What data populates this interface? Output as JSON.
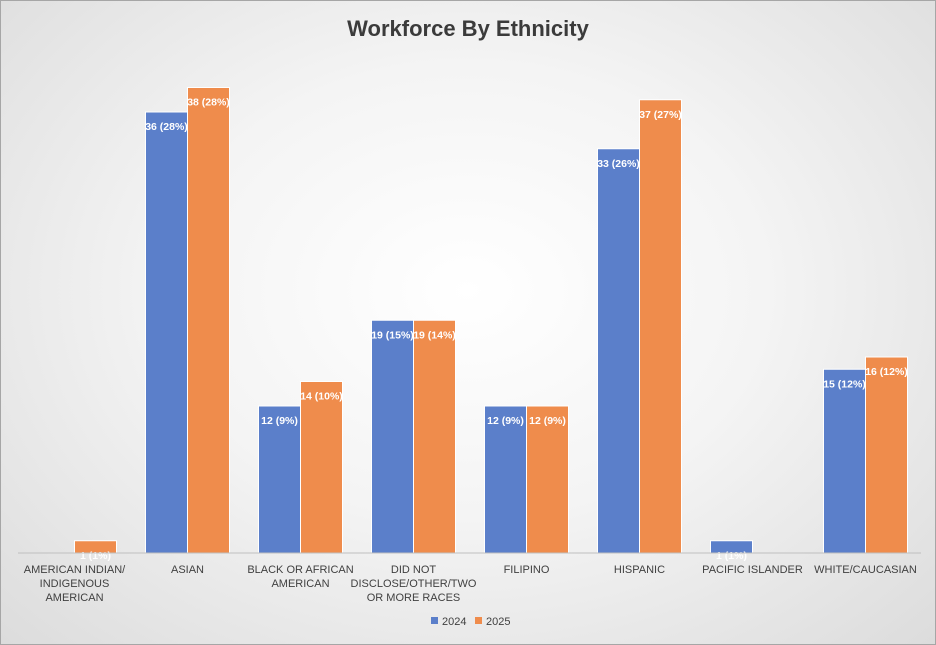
{
  "chart_data": {
    "type": "bar",
    "title": "Workforce By Ethnicity",
    "xlabel": "",
    "ylabel": "",
    "categories": [
      "AMERICAN INDIAN/ INDIGENOUS AMERICAN",
      "ASIAN",
      "BLACK OR AFRICAN AMERICAN",
      "DID NOT DISCLOSE/OTHER/TWO OR MORE RACES",
      "FILIPINO",
      "HISPANIC",
      "PACIFIC ISLANDER",
      "WHITE/CAUCASIAN"
    ],
    "category_lines": [
      [
        "AMERICAN INDIAN/",
        "INDIGENOUS",
        "AMERICAN"
      ],
      [
        "ASIAN"
      ],
      [
        "BLACK OR AFRICAN",
        "AMERICAN"
      ],
      [
        "DID NOT",
        "DISCLOSE/OTHER/TWO",
        "OR MORE RACES"
      ],
      [
        "FILIPINO"
      ],
      [
        "HISPANIC"
      ],
      [
        "PACIFIC ISLANDER"
      ],
      [
        "WHITE/CAUCASIAN"
      ]
    ],
    "series": [
      {
        "name": "2024",
        "color": "#5b7fca",
        "values": [
          0,
          36,
          12,
          19,
          12,
          33,
          1,
          15
        ],
        "labels": [
          "",
          "36 (28%)",
          "12 (9%)",
          "19 (15%)",
          "12 (9%)",
          "33 (26%)",
          "1 (1%)",
          "15 (12%)"
        ]
      },
      {
        "name": "2025",
        "color": "#ef8c4c",
        "values": [
          1,
          38,
          14,
          19,
          12,
          37,
          0,
          16
        ],
        "labels": [
          "1 (1%)",
          "38 (28%)",
          "14 (10%)",
          "19 (14%)",
          "12 (9%)",
          "37 (27%)",
          "",
          "16 (12%)"
        ]
      }
    ],
    "ylim": [
      0,
      40
    ],
    "grid": false,
    "legend": "bottom"
  }
}
